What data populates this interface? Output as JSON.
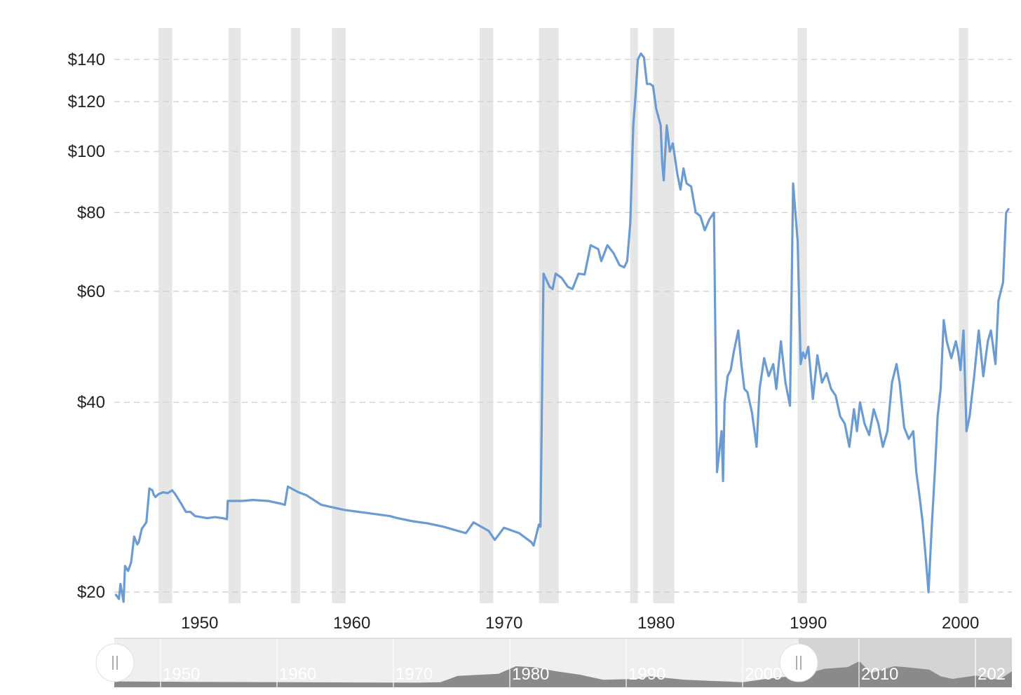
{
  "chart_data": {
    "type": "line",
    "y_scale": "log",
    "yticks": [
      {
        "value": 140,
        "label": "$140"
      },
      {
        "value": 120,
        "label": "$120"
      },
      {
        "value": 100,
        "label": "$100"
      },
      {
        "value": 80,
        "label": "$80"
      },
      {
        "value": 60,
        "label": "$60"
      },
      {
        "value": 40,
        "label": "$40"
      },
      {
        "value": 20,
        "label": "$20"
      }
    ],
    "xticks": [
      "1950",
      "1960",
      "1970",
      "1980",
      "1990",
      "2000"
    ],
    "xlim": [
      1944.4,
      2003.2
    ],
    "ylim": [
      19.2,
      157
    ],
    "grid": "horizontal dashed",
    "colors": {
      "series": "#6a9bd3",
      "recession": "#e6e6e6",
      "grid": "#cfcfcf"
    },
    "recessions": [
      [
        1947.3,
        1948.2
      ],
      [
        1951.9,
        1952.7
      ],
      [
        1956.0,
        1956.6
      ],
      [
        1958.7,
        1959.6
      ],
      [
        1968.4,
        1969.3
      ],
      [
        1972.3,
        1973.6
      ],
      [
        1978.3,
        1978.8
      ],
      [
        1979.8,
        1981.2
      ],
      [
        1989.3,
        1989.9
      ],
      [
        1999.9,
        2000.5
      ]
    ],
    "series": [
      {
        "x": [
          1944.5,
          1944.7,
          1944.8,
          1945.0,
          1945.1,
          1945.3,
          1945.5,
          1945.7,
          1945.9,
          1946.0,
          1946.2,
          1946.5,
          1946.7,
          1946.9,
          1946.97,
          1947.1,
          1947.3,
          1947.6,
          1947.9,
          1948.2,
          1948.4,
          1948.8,
          1949.1,
          1949.4,
          1949.7,
          1950.1,
          1950.5,
          1951.0,
          1951.5,
          1951.8,
          1951.85,
          1952.2,
          1952.8,
          1953.5,
          1954.5,
          1955.4,
          1955.6,
          1955.8,
          1956.5,
          1957.0,
          1958.0,
          1959.5,
          1961.0,
          1962.5,
          1963.0,
          1964.0,
          1965.0,
          1966.0,
          1967.0,
          1967.5,
          1968.0,
          1969.0,
          1969.4,
          1970.0,
          1971.0,
          1971.8,
          1971.95,
          1972.3,
          1972.4,
          1972.6,
          1973.0,
          1973.2,
          1973.4,
          1973.8,
          1974.2,
          1974.5,
          1974.9,
          1975.3,
          1975.7,
          1976.2,
          1976.4,
          1976.8,
          1977.2,
          1977.6,
          1977.9,
          1978.1,
          1978.3,
          1978.5,
          1978.65,
          1978.8,
          1979.0,
          1979.2,
          1979.4,
          1979.6,
          1979.8,
          1980.0,
          1980.3,
          1980.4,
          1980.5,
          1980.7,
          1980.9,
          1981.1,
          1981.4,
          1981.6,
          1981.8,
          1982.0,
          1982.3,
          1982.6,
          1982.9,
          1983.2,
          1983.5,
          1983.8,
          1984.0,
          1984.3,
          1984.4,
          1984.5,
          1984.7,
          1984.9,
          1985.1,
          1985.4,
          1985.6,
          1985.8,
          1986.0,
          1986.3,
          1986.6,
          1986.8,
          1987.1,
          1987.4,
          1987.7,
          1987.9,
          1988.2,
          1988.5,
          1988.8,
          1989.0,
          1989.3,
          1989.5,
          1989.65,
          1989.8,
          1990.0,
          1990.3,
          1990.6,
          1990.9,
          1991.2,
          1991.5,
          1991.8,
          1992.1,
          1992.4,
          1992.7,
          1993.0,
          1993.2,
          1993.4,
          1993.7,
          1994.0,
          1994.3,
          1994.6,
          1994.9,
          1995.2,
          1995.5,
          1995.8,
          1996.0,
          1996.3,
          1996.6,
          1996.9,
          1997.1,
          1997.3,
          1997.5,
          1997.7,
          1997.9,
          1998.1,
          1998.35,
          1998.5,
          1998.7,
          1998.9,
          1999.1,
          1999.4,
          1999.7,
          1999.85,
          2000.0,
          2000.2,
          2000.4,
          2000.6,
          2000.9,
          2001.2,
          2001.5,
          2001.8,
          2002.0,
          2002.3,
          2002.5,
          2002.8,
          2003.0,
          2003.15
        ],
        "y": [
          19.8,
          19.5,
          20.6,
          19.3,
          22.0,
          21.6,
          22.3,
          24.5,
          23.8,
          24.0,
          25.2,
          25.8,
          29.2,
          29.0,
          28.6,
          28.3,
          28.6,
          28.8,
          28.7,
          29.0,
          28.6,
          27.6,
          26.8,
          26.8,
          26.4,
          26.3,
          26.2,
          26.3,
          26.2,
          26.1,
          27.9,
          27.9,
          27.9,
          28.0,
          27.9,
          27.6,
          27.5,
          29.4,
          28.8,
          28.5,
          27.5,
          27.0,
          26.7,
          26.4,
          26.2,
          25.9,
          25.7,
          25.4,
          25.0,
          24.8,
          25.8,
          25.0,
          24.2,
          25.3,
          24.8,
          24.0,
          23.7,
          25.6,
          25.4,
          64.0,
          61.0,
          60.5,
          64.0,
          63.0,
          61.0,
          60.5,
          64.0,
          63.8,
          71.0,
          70.0,
          67.0,
          71.0,
          69.0,
          66.0,
          65.5,
          67.0,
          77.0,
          110.0,
          123.0,
          140.0,
          143.0,
          141.0,
          128.0,
          128.0,
          127.0,
          117.0,
          110.0,
          96.0,
          90.0,
          110.0,
          100.0,
          103.0,
          92.0,
          87.0,
          94.0,
          89.0,
          88.0,
          80.0,
          79.0,
          75.0,
          78.0,
          80.0,
          31.0,
          36.0,
          30.0,
          40.0,
          44.0,
          45.0,
          48.0,
          52.0,
          46.0,
          42.0,
          41.5,
          38.5,
          34.0,
          42.0,
          47.0,
          44.0,
          46.0,
          42.0,
          50.0,
          43.0,
          39.5,
          89.0,
          72.0,
          46.0,
          48.0,
          47.0,
          49.0,
          40.5,
          47.5,
          43.0,
          44.5,
          42.0,
          41.0,
          38.0,
          37.0,
          34.0,
          39.0,
          36.0,
          40.0,
          37.0,
          35.5,
          39.0,
          37.0,
          34.0,
          36.0,
          43.0,
          46.0,
          43.0,
          36.5,
          35.0,
          36.0,
          31.0,
          28.5,
          26.0,
          23.0,
          20.0,
          25.0,
          32.0,
          38.0,
          42.0,
          54.0,
          50.0,
          47.0,
          50.0,
          48.0,
          45.0,
          52.0,
          36.0,
          38.0,
          44.0,
          52.0,
          44.0,
          50.0,
          52.0,
          46.0,
          58.0,
          62.0,
          80.0,
          81.0
        ]
      }
    ],
    "navigator": {
      "labels": [
        "1950",
        "1960",
        "1970",
        "1980",
        "1990",
        "2000",
        "2010",
        "202"
      ],
      "selected_range": [
        1944,
        2003
      ]
    }
  }
}
